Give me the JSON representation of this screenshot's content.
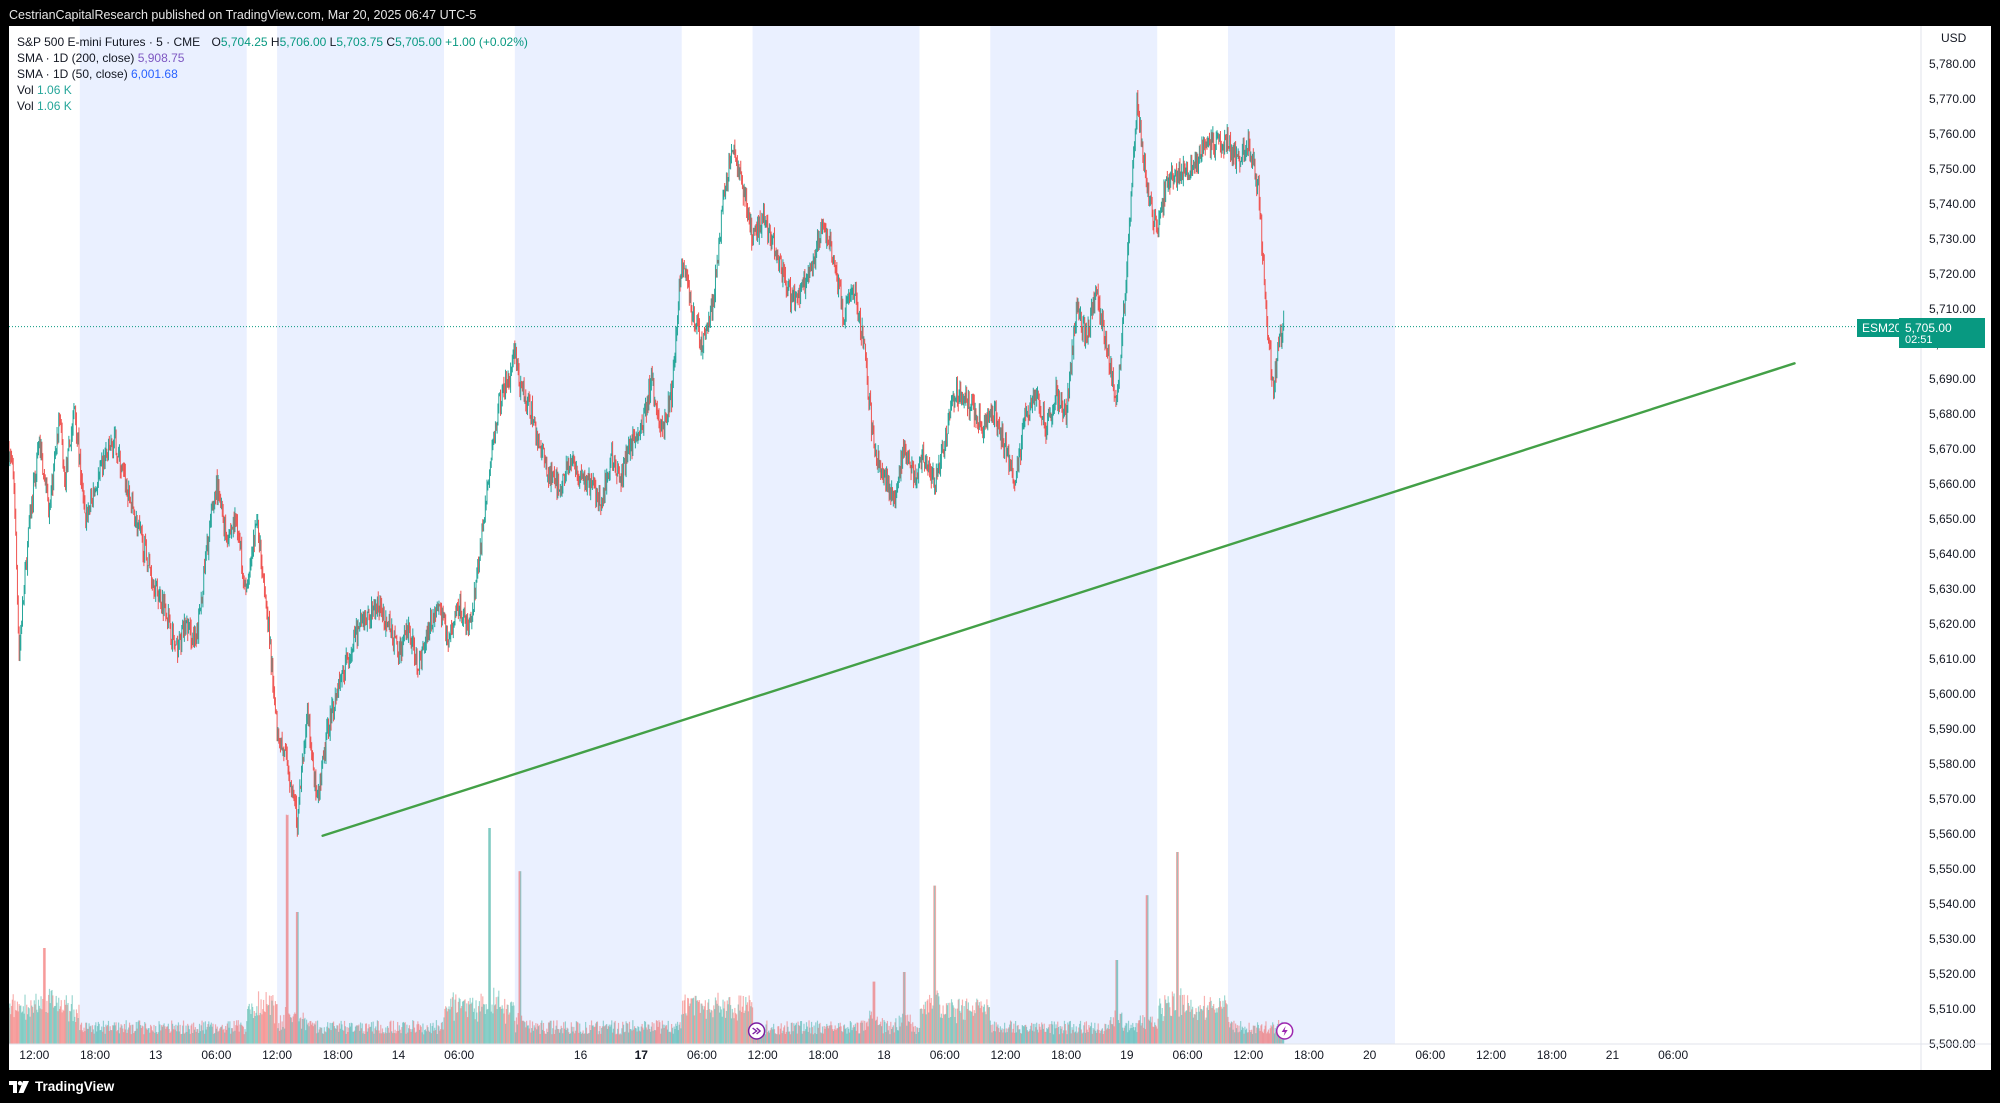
{
  "header": {
    "published_text": "CestrianCapitalResearch published on TradingView.com, Mar 20, 2025 06:47 UTC-5"
  },
  "legend": {
    "symbol": "S&P 500 E-mini Futures · 5 · CME",
    "open_label": "O",
    "open_value": "5,704.25",
    "high_label": "H",
    "high_value": "5,706.00",
    "low_label": "L",
    "low_value": "5,703.75",
    "close_label": "C",
    "close_value": "5,705.00",
    "change": "+1.00 (+0.02%)",
    "sma200_label": "SMA · 1D (200, close)",
    "sma200_value": "5,908.75",
    "sma50_label": "SMA · 1D (50, close)",
    "sma50_value": "6,001.68",
    "vol1_label": "Vol",
    "vol1_value": "1.06 K",
    "vol2_label": "Vol",
    "vol2_value": "1.06 K"
  },
  "price_tag": {
    "symbol": "ESM2025",
    "price": "5,705.00",
    "countdown": "02:51"
  },
  "footer": {
    "brand": "TradingView"
  },
  "colors": {
    "up": "#26a69a",
    "down": "#ef5350",
    "trendline": "#43a047",
    "session_shade": "#eaf0ff",
    "accent": "#089981"
  },
  "chart_data": {
    "type": "candlestick",
    "yunit": "USD",
    "ylim": [
      5500,
      5785
    ],
    "yticks": [
      5500,
      5510,
      5520,
      5530,
      5540,
      5550,
      5560,
      5570,
      5580,
      5590,
      5600,
      5610,
      5620,
      5630,
      5640,
      5650,
      5660,
      5670,
      5680,
      5690,
      5700,
      5710,
      5720,
      5730,
      5740,
      5750,
      5760,
      5770,
      5780
    ],
    "ytick_labels": [
      "5,500.00",
      "5,510.00",
      "5,520.00",
      "5,530.00",
      "5,540.00",
      "5,550.00",
      "5,560.00",
      "5,570.00",
      "5,580.00",
      "5,590.00",
      "5,600.00",
      "5,610.00",
      "5,620.00",
      "5,630.00",
      "5,640.00",
      "5,650.00",
      "5,660.00",
      "5,670.00",
      "5,680.00",
      "5,690.00",
      "5,700.00",
      "5,710.00",
      "5,720.00",
      "5,730.00",
      "5,740.00",
      "5,750.00",
      "5,760.00",
      "5,770.00",
      "5,780.00"
    ],
    "x_hours": [
      12,
      18,
      24,
      30,
      36,
      42,
      48,
      54,
      60,
      66,
      72,
      78,
      84,
      90,
      96,
      102,
      108,
      114,
      120,
      126,
      132,
      138,
      144,
      150,
      156,
      162,
      168,
      174,
      180,
      186
    ],
    "xtick_labels": [
      "12:00",
      "18:00",
      "13",
      "06:00",
      "12:00",
      "18:00",
      "14",
      "06:00",
      "",
      "16",
      "17",
      "06:00",
      "12:00",
      "18:00",
      "18",
      "06:00",
      "12:00",
      "18:00",
      "19",
      "06:00",
      "12:00",
      "18:00",
      "20",
      "06:00",
      "12:00",
      "18:00",
      "21",
      "06:00",
      "",
      ""
    ],
    "xtick_bold": [
      false,
      false,
      false,
      false,
      false,
      false,
      false,
      false,
      false,
      false,
      true,
      false,
      false,
      false,
      false,
      false,
      false,
      false,
      false,
      false,
      false,
      false,
      false,
      false,
      false,
      false,
      false,
      false,
      false,
      false
    ],
    "x_range_hours": [
      9.5,
      198.5
    ],
    "sessions_hours": [
      [
        16.5,
        33
      ],
      [
        36,
        52.5
      ],
      [
        59.5,
        76
      ],
      [
        83,
        99.5
      ],
      [
        106.5,
        123
      ],
      [
        130,
        146.5
      ]
    ],
    "path_keypoints": [
      [
        9.5,
        5670
      ],
      [
        10,
        5660
      ],
      [
        10.5,
        5612
      ],
      [
        11.5,
        5648
      ],
      [
        12.5,
        5672
      ],
      [
        13.5,
        5652
      ],
      [
        14.5,
        5680
      ],
      [
        15,
        5660
      ],
      [
        16,
        5682
      ],
      [
        17,
        5650
      ],
      [
        18,
        5658
      ],
      [
        19,
        5668
      ],
      [
        20,
        5672
      ],
      [
        21,
        5660
      ],
      [
        22,
        5650
      ],
      [
        23,
        5640
      ],
      [
        24,
        5630
      ],
      [
        25,
        5625
      ],
      [
        26,
        5612
      ],
      [
        27,
        5620
      ],
      [
        28,
        5614
      ],
      [
        29,
        5640
      ],
      [
        30,
        5660
      ],
      [
        31,
        5645
      ],
      [
        32,
        5650
      ],
      [
        33,
        5628
      ],
      [
        34,
        5650
      ],
      [
        35,
        5625
      ],
      [
        36,
        5590
      ],
      [
        37,
        5580
      ],
      [
        38,
        5564
      ],
      [
        39,
        5595
      ],
      [
        40,
        5568
      ],
      [
        41,
        5590
      ],
      [
        42,
        5602
      ],
      [
        43,
        5610
      ],
      [
        44,
        5618
      ],
      [
        45,
        5622
      ],
      [
        46,
        5625
      ],
      [
        47,
        5620
      ],
      [
        48,
        5612
      ],
      [
        49,
        5618
      ],
      [
        50,
        5608
      ],
      [
        51,
        5620
      ],
      [
        52,
        5625
      ],
      [
        53,
        5615
      ],
      [
        54,
        5625
      ],
      [
        55,
        5618
      ],
      [
        56,
        5640
      ],
      [
        57,
        5665
      ],
      [
        58,
        5684
      ],
      [
        59,
        5690
      ],
      [
        59.5,
        5698
      ],
      [
        60,
        5688
      ],
      [
        61,
        5682
      ],
      [
        62,
        5670
      ],
      [
        63,
        5662
      ],
      [
        64,
        5660
      ],
      [
        65,
        5666
      ],
      [
        66,
        5662
      ],
      [
        67,
        5660
      ],
      [
        68,
        5655
      ],
      [
        69,
        5668
      ],
      [
        70,
        5662
      ],
      [
        71,
        5672
      ],
      [
        72,
        5675
      ],
      [
        73,
        5690
      ],
      [
        74,
        5675
      ],
      [
        75,
        5685
      ],
      [
        76,
        5725
      ],
      [
        77,
        5710
      ],
      [
        78,
        5700
      ],
      [
        79,
        5710
      ],
      [
        80,
        5738
      ],
      [
        81,
        5756
      ],
      [
        82,
        5746
      ],
      [
        83,
        5730
      ],
      [
        84,
        5736
      ],
      [
        85,
        5730
      ],
      [
        86,
        5720
      ],
      [
        87,
        5712
      ],
      [
        88,
        5716
      ],
      [
        89,
        5722
      ],
      [
        90,
        5735
      ],
      [
        91,
        5725
      ],
      [
        92,
        5708
      ],
      [
        93,
        5716
      ],
      [
        94,
        5700
      ],
      [
        95,
        5670
      ],
      [
        96,
        5662
      ],
      [
        97,
        5656
      ],
      [
        98,
        5670
      ],
      [
        99,
        5662
      ],
      [
        100,
        5668
      ],
      [
        101,
        5660
      ],
      [
        102,
        5672
      ],
      [
        103,
        5686
      ],
      [
        104,
        5685
      ],
      [
        105,
        5680
      ],
      [
        106,
        5676
      ],
      [
        107,
        5680
      ],
      [
        108,
        5670
      ],
      [
        109,
        5660
      ],
      [
        110,
        5680
      ],
      [
        111,
        5686
      ],
      [
        112,
        5676
      ],
      [
        113,
        5686
      ],
      [
        114,
        5680
      ],
      [
        115,
        5710
      ],
      [
        116,
        5702
      ],
      [
        117,
        5715
      ],
      [
        118,
        5700
      ],
      [
        119,
        5682
      ],
      [
        120,
        5720
      ],
      [
        121,
        5770
      ],
      [
        122,
        5745
      ],
      [
        123,
        5732
      ],
      [
        124,
        5748
      ],
      [
        125,
        5748
      ],
      [
        126,
        5750
      ],
      [
        127,
        5752
      ],
      [
        128,
        5758
      ],
      [
        129,
        5757
      ],
      [
        130,
        5758
      ],
      [
        131,
        5752
      ],
      [
        132,
        5757
      ],
      [
        133,
        5745
      ],
      [
        134,
        5700
      ],
      [
        134.5,
        5688
      ],
      [
        135,
        5700
      ],
      [
        135.5,
        5705
      ]
    ],
    "trendline": {
      "start": [
        40.5,
        5559.5
      ],
      "end": [
        186,
        5694.5
      ]
    },
    "last_price": 5705,
    "volume_spike_hours": [
      [
        13,
        0.4
      ],
      [
        37,
        0.95
      ],
      [
        38,
        0.55
      ],
      [
        57,
        0.9
      ],
      [
        60,
        0.72
      ],
      [
        77,
        0.19
      ],
      [
        95,
        0.26
      ],
      [
        98,
        0.3
      ],
      [
        101,
        0.66
      ],
      [
        119,
        0.35
      ],
      [
        122,
        0.62
      ],
      [
        125,
        0.8
      ]
    ]
  }
}
